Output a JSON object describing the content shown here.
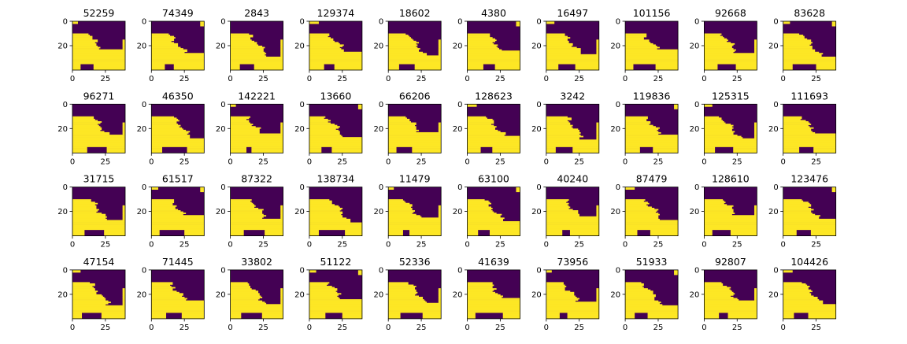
{
  "chart_data": {
    "type": "heatmap",
    "layout": {
      "rows": 4,
      "cols": 10
    },
    "colors": {
      "low": "#440154",
      "high": "#fde725",
      "axis": "#000000"
    },
    "xlim": [
      0,
      40
    ],
    "ylim": [
      40,
      0
    ],
    "xticks": [
      0,
      25
    ],
    "yticks": [
      0,
      20
    ],
    "tick_labels": {
      "x": [
        "0",
        "25"
      ],
      "y": [
        "0",
        "20"
      ]
    },
    "panels": [
      {
        "title": "52259",
        "variant": 0
      },
      {
        "title": "74349",
        "variant": 1
      },
      {
        "title": "2843",
        "variant": 2
      },
      {
        "title": "129374",
        "variant": 3
      },
      {
        "title": "18602",
        "variant": 4
      },
      {
        "title": "4380",
        "variant": 5
      },
      {
        "title": "16497",
        "variant": 6
      },
      {
        "title": "101156",
        "variant": 7
      },
      {
        "title": "92668",
        "variant": 8
      },
      {
        "title": "83628",
        "variant": 9
      },
      {
        "title": "96271",
        "variant": 10
      },
      {
        "title": "46350",
        "variant": 11
      },
      {
        "title": "142221",
        "variant": 12
      },
      {
        "title": "13660",
        "variant": 13
      },
      {
        "title": "66206",
        "variant": 14
      },
      {
        "title": "128623",
        "variant": 15
      },
      {
        "title": "3242",
        "variant": 16
      },
      {
        "title": "119836",
        "variant": 17
      },
      {
        "title": "125315",
        "variant": 18
      },
      {
        "title": "111693",
        "variant": 19
      },
      {
        "title": "31715",
        "variant": 20
      },
      {
        "title": "61517",
        "variant": 21
      },
      {
        "title": "87322",
        "variant": 22
      },
      {
        "title": "138734",
        "variant": 23
      },
      {
        "title": "11479",
        "variant": 24
      },
      {
        "title": "63100",
        "variant": 25
      },
      {
        "title": "40240",
        "variant": 26
      },
      {
        "title": "87479",
        "variant": 27
      },
      {
        "title": "128610",
        "variant": 28
      },
      {
        "title": "123476",
        "variant": 29
      },
      {
        "title": "47154",
        "variant": 30
      },
      {
        "title": "71445",
        "variant": 31
      },
      {
        "title": "33802",
        "variant": 32
      },
      {
        "title": "51122",
        "variant": 33
      },
      {
        "title": "52336",
        "variant": 34
      },
      {
        "title": "41639",
        "variant": 35
      },
      {
        "title": "73956",
        "variant": 36
      },
      {
        "title": "51933",
        "variant": 37
      },
      {
        "title": "92807",
        "variant": 38
      },
      {
        "title": "104426",
        "variant": 39
      }
    ]
  }
}
